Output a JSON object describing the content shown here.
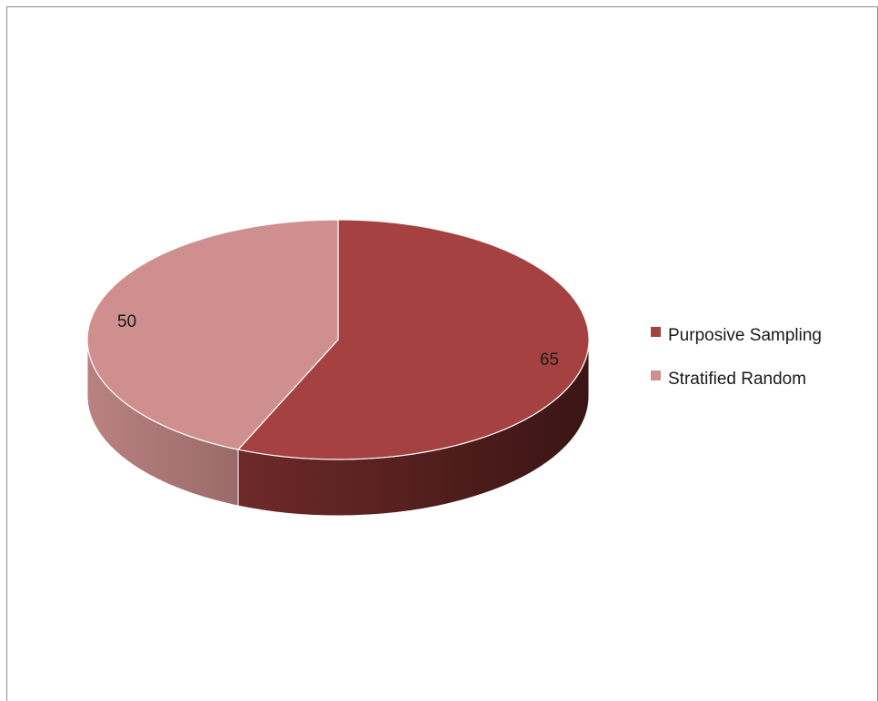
{
  "chart_data": {
    "type": "pie",
    "style": "3d",
    "categories": [
      "Purposive Sampling",
      "Stratified Random"
    ],
    "values": [
      65,
      50
    ],
    "colors": [
      "#a54241",
      "#cf8f8e"
    ],
    "data_labels": [
      "65",
      "50"
    ],
    "legend": {
      "placement": "right",
      "entries": [
        "Purposive Sampling",
        "Stratified Random"
      ]
    }
  }
}
